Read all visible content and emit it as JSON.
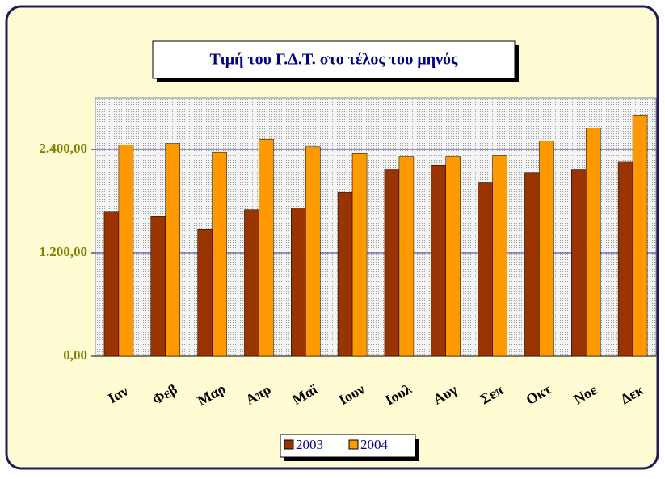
{
  "chart_data": {
    "type": "bar",
    "title": "Τιμή του Γ.Δ.Τ. στο τέλος του μηνός",
    "categories": [
      "Ιαν",
      "Φεβ",
      "Μαρ",
      "Απρ",
      "Μαϊ",
      "Ιουν",
      "Ιουλ",
      "Αυγ",
      "Σεπ",
      "Οκτ",
      "Νοε",
      "Δεκ"
    ],
    "series": [
      {
        "name": "2003",
        "color": "#993300",
        "values": [
          1680,
          1620,
          1470,
          1700,
          1720,
          1900,
          2170,
          2220,
          2020,
          2130,
          2170,
          2260
        ]
      },
      {
        "name": "2004",
        "color": "#ff9900",
        "values": [
          2450,
          2470,
          2370,
          2520,
          2430,
          2350,
          2320,
          2320,
          2330,
          2500,
          2650,
          2800
        ]
      }
    ],
    "ylim": [
      0,
      3000
    ],
    "yticks": [
      {
        "value": 0,
        "label": "0,00"
      },
      {
        "value": 1200,
        "label": "1.200,00"
      },
      {
        "value": 2400,
        "label": "2.400,00"
      }
    ],
    "grid": true
  }
}
